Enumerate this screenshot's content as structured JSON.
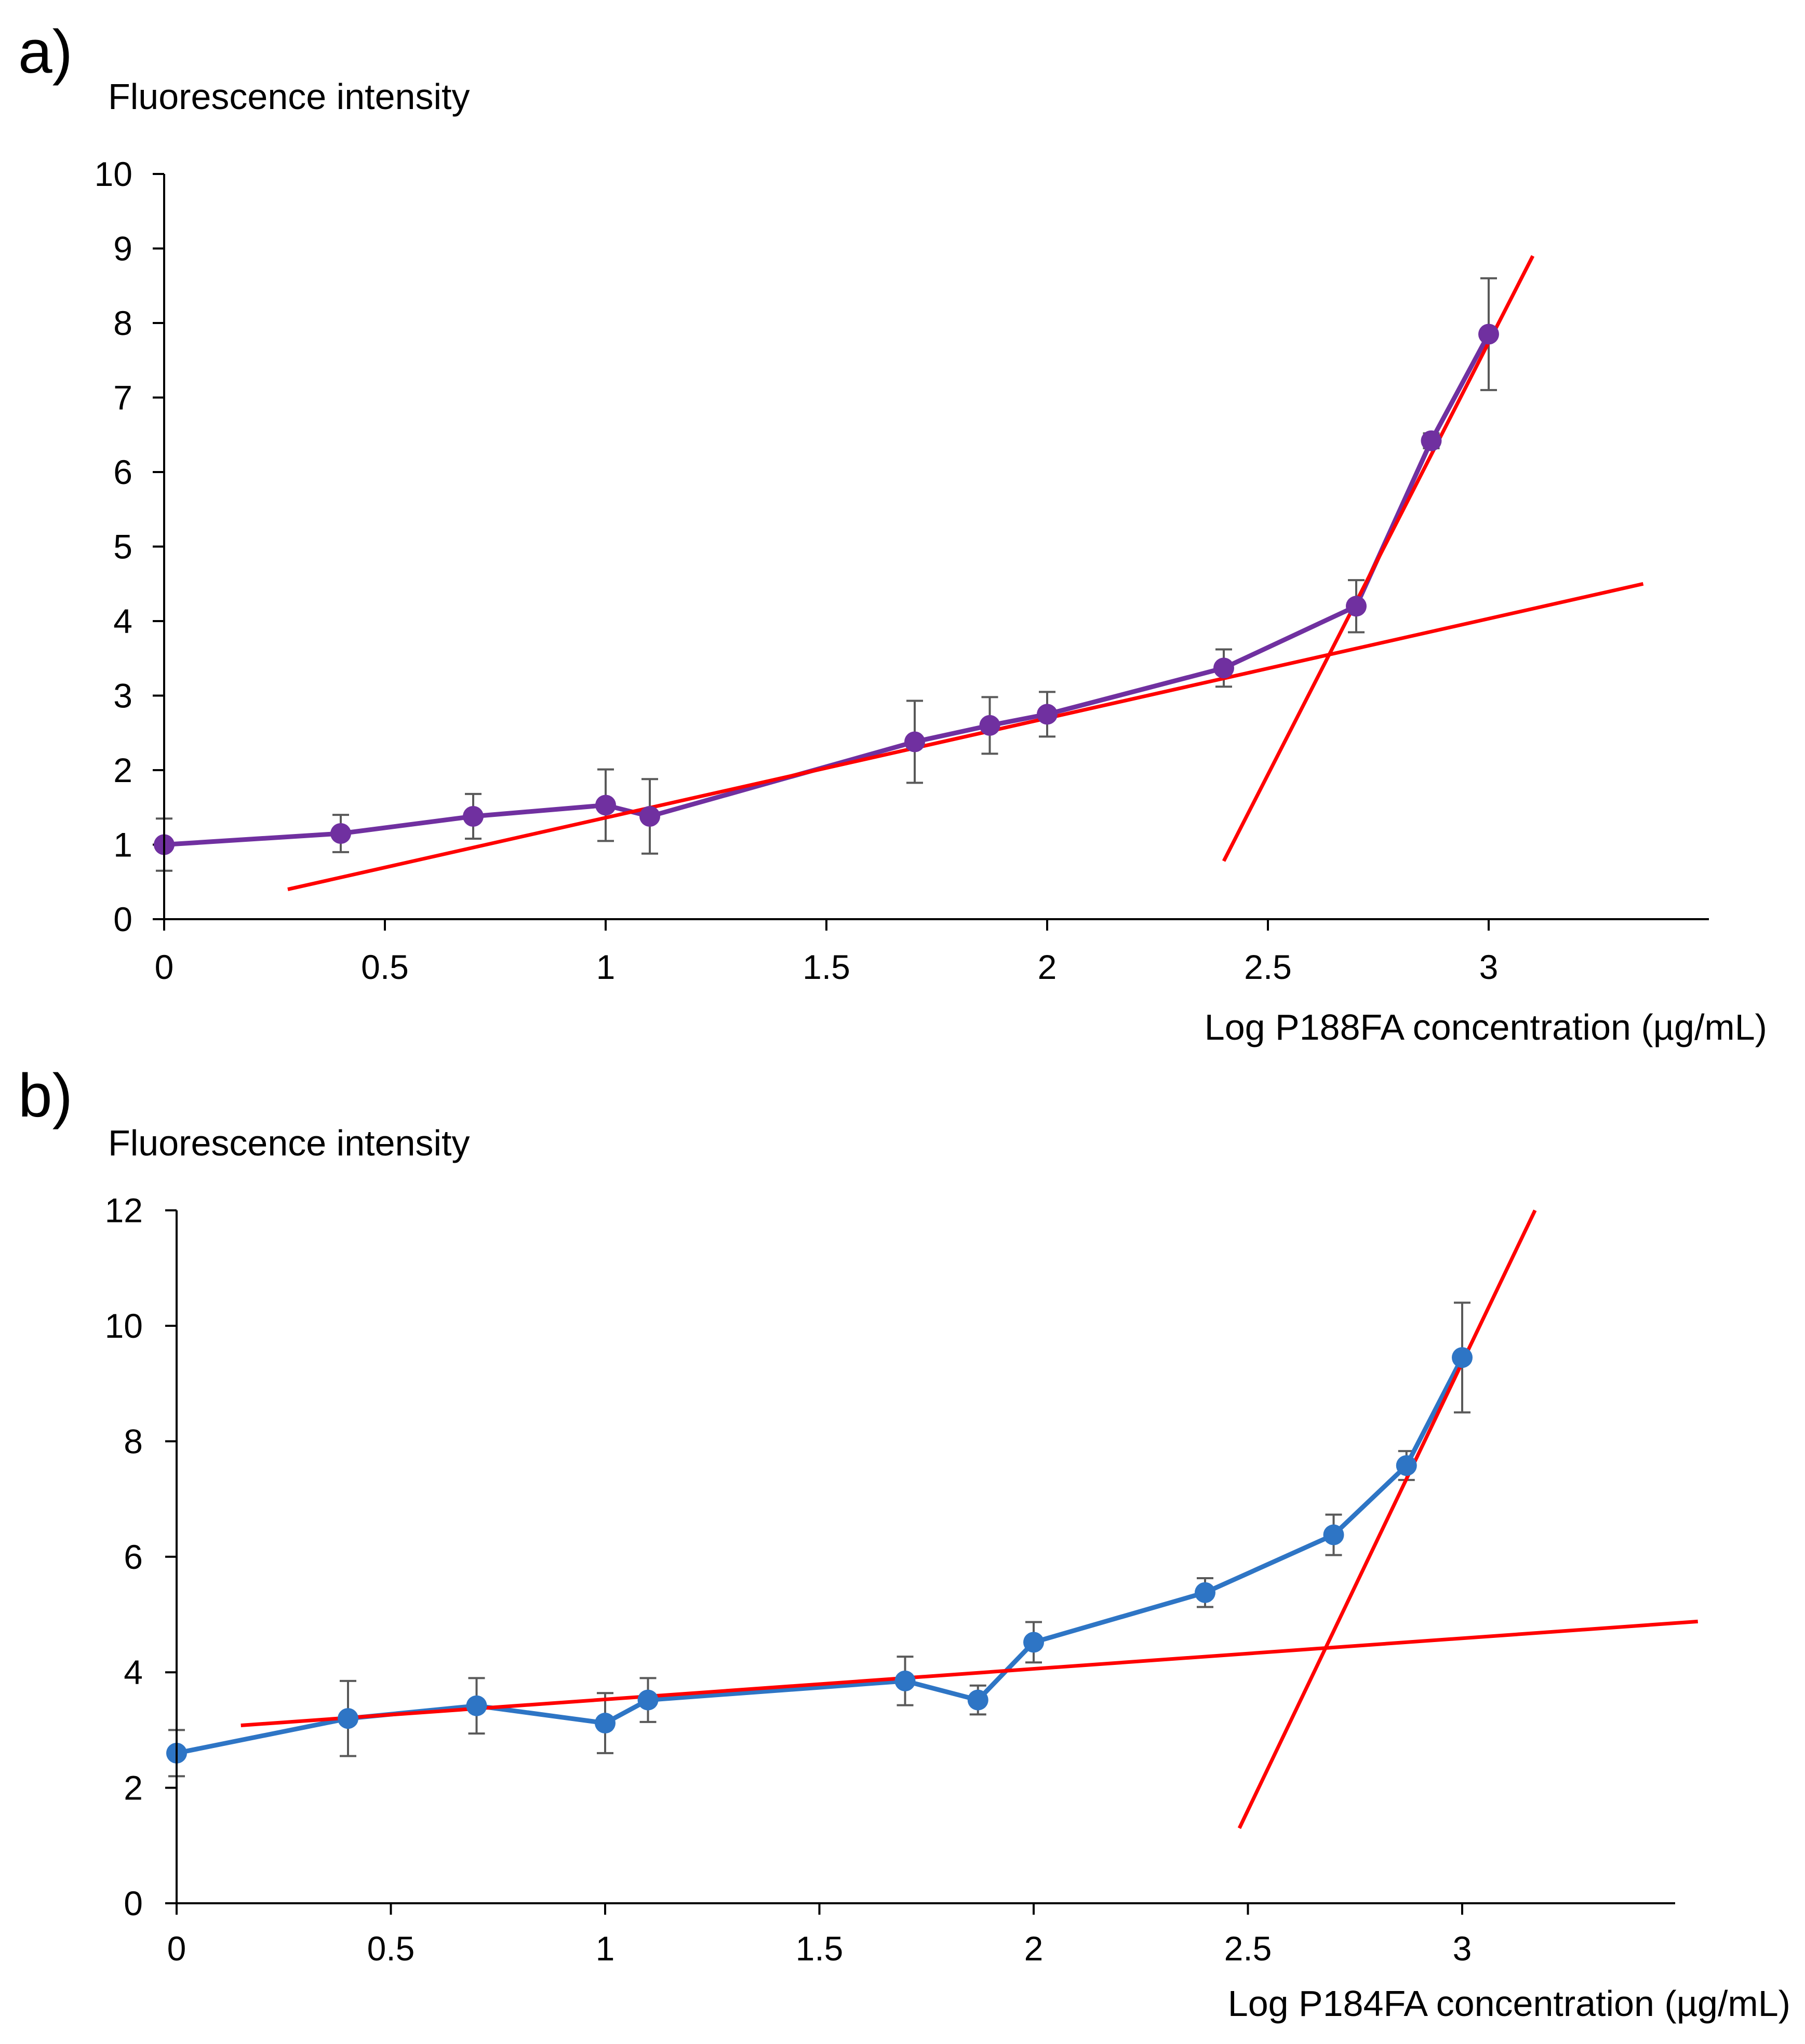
{
  "chart_data": [
    {
      "panel_label": "a)",
      "type": "line",
      "title": "",
      "ylabel": "Fluorescence intensity",
      "xlabel": "Log P188FA concentration (µg/mL)",
      "xlim": [
        0,
        3.5
      ],
      "ylim": [
        0,
        10
      ],
      "xticks": [
        0,
        0.5,
        1,
        1.5,
        2,
        2.5,
        3
      ],
      "xtick_labels": [
        "0",
        "0.5",
        "1",
        "1.5",
        "2",
        "2.5",
        "3"
      ],
      "yticks": [
        0,
        1,
        2,
        3,
        4,
        5,
        6,
        7,
        8,
        9,
        10
      ],
      "ytick_labels": [
        "0",
        "1",
        "2",
        "3",
        "4",
        "5",
        "6",
        "7",
        "8",
        "9",
        "10"
      ],
      "grid": false,
      "series": [
        {
          "name": "P188FA",
          "color": "#7030a0",
          "x": [
            0,
            0.4,
            0.7,
            1.0,
            1.1,
            1.7,
            1.87,
            2.0,
            2.4,
            2.7,
            2.87,
            3.0
          ],
          "y": [
            1.0,
            1.15,
            1.38,
            1.53,
            1.38,
            2.38,
            2.6,
            2.75,
            3.37,
            4.2,
            6.42,
            7.85
          ],
          "error": [
            0.35,
            0.25,
            0.3,
            0.48,
            0.5,
            0.55,
            0.38,
            0.3,
            0.25,
            0.35,
            0.1,
            0.75
          ]
        }
      ],
      "trendlines": [
        {
          "name": "low-concentration fit",
          "color": "#ff0000",
          "x": [
            0.28,
            3.35
          ],
          "y": [
            0.4,
            4.5
          ]
        },
        {
          "name": "high-concentration fit",
          "color": "#ff0000",
          "x": [
            2.4,
            3.1
          ],
          "y": [
            0.78,
            8.9
          ]
        }
      ]
    },
    {
      "panel_label": "b)",
      "type": "line",
      "title": "",
      "ylabel": "Fluorescence intensity",
      "xlabel": "Log P184FA concentration (µg/mL)",
      "xlim": [
        0,
        3.5
      ],
      "ylim": [
        0,
        12
      ],
      "xticks": [
        0,
        0.5,
        1,
        1.5,
        2,
        2.5,
        3
      ],
      "xtick_labels": [
        "0",
        "0.5",
        "1",
        "1.5",
        "2",
        "2.5",
        "3"
      ],
      "yticks": [
        0,
        2,
        4,
        6,
        8,
        10,
        12
      ],
      "ytick_labels": [
        "0",
        "2",
        "4",
        "6",
        "8",
        "10",
        "12"
      ],
      "grid": false,
      "series": [
        {
          "name": "P184FA",
          "color": "#2e75c5",
          "x": [
            0,
            0.4,
            0.7,
            1.0,
            1.1,
            1.7,
            1.87,
            2.0,
            2.4,
            2.7,
            2.87,
            3.0
          ],
          "y": [
            2.6,
            3.2,
            3.42,
            3.12,
            3.52,
            3.85,
            3.52,
            4.52,
            5.38,
            6.38,
            7.58,
            9.45
          ],
          "error": [
            0.4,
            0.65,
            0.48,
            0.52,
            0.38,
            0.42,
            0.25,
            0.35,
            0.25,
            0.35,
            0.25,
            0.95
          ]
        }
      ],
      "trendlines": [
        {
          "name": "low-concentration fit",
          "color": "#ff0000",
          "x": [
            0.15,
            3.55
          ],
          "y": [
            3.08,
            4.88
          ]
        },
        {
          "name": "high-concentration fit",
          "color": "#ff0000",
          "x": [
            2.48,
            3.17
          ],
          "y": [
            1.3,
            12.0
          ]
        }
      ]
    }
  ]
}
